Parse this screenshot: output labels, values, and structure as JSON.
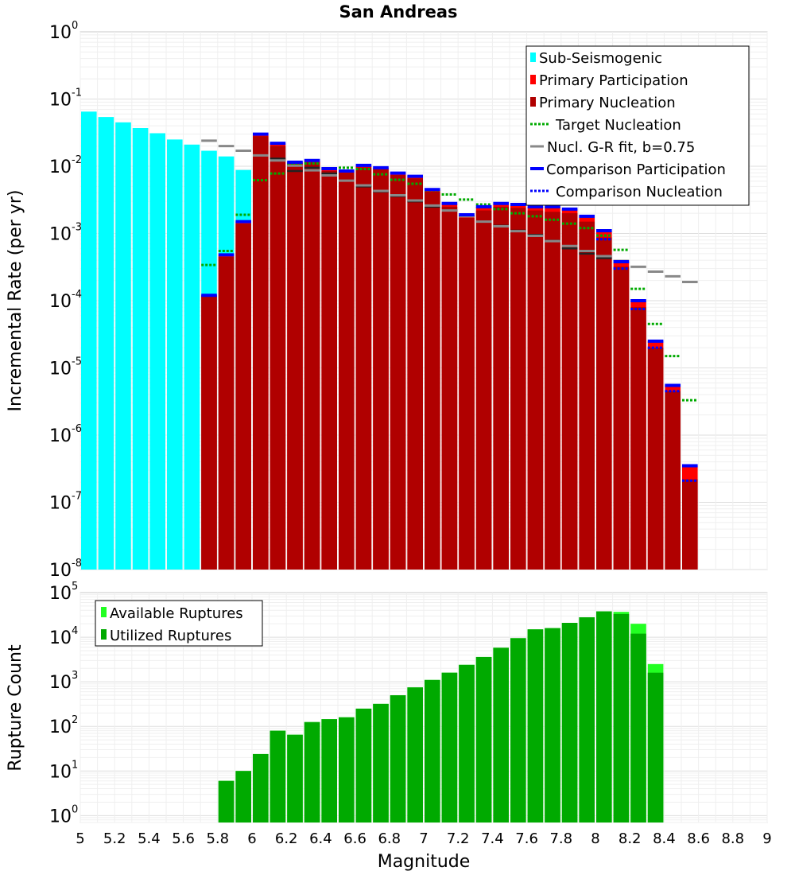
{
  "chart_data": [
    {
      "type": "bar",
      "title": "San Andreas",
      "ylabel": "Incremental Rate (per yr)",
      "xlabel": "",
      "yscale": "log",
      "ylim": [
        1e-08,
        1
      ],
      "xlim": [
        5,
        9
      ],
      "grid": true,
      "legend_placement": "top-right",
      "y_tick_labels": [
        {
          "base": "10",
          "exp": "0"
        },
        {
          "base": "10",
          "exp": "-1"
        },
        {
          "base": "10",
          "exp": "-2"
        },
        {
          "base": "10",
          "exp": "-3"
        },
        {
          "base": "10",
          "exp": "-4"
        },
        {
          "base": "10",
          "exp": "-5"
        },
        {
          "base": "10",
          "exp": "-6"
        },
        {
          "base": "10",
          "exp": "-7"
        },
        {
          "base": "10",
          "exp": "-8"
        }
      ],
      "legend": [
        "Sub-Seismogenic",
        "Primary Participation",
        "Primary Nucleation",
        "Target Nucleation",
        "Nucl. G-R fit, b=0.75",
        "Comparison Participation",
        "Comparison Nucleation"
      ],
      "colors": {
        "sub_seismogenic": "#00ffff",
        "primary_participation": "#ff0000",
        "primary_nucleation": "#b00000",
        "target_nucleation": "#00aa00",
        "gr_fit": "#888888",
        "comparison_participation": "#0000ff",
        "comparison_nucleation": "#0000ff",
        "nucleation_tick": "#222222"
      },
      "x": [
        5.05,
        5.15,
        5.25,
        5.35,
        5.45,
        5.55,
        5.65,
        5.75,
        5.85,
        5.95,
        6.05,
        6.15,
        6.25,
        6.35,
        6.45,
        6.55,
        6.65,
        6.75,
        6.85,
        6.95,
        7.05,
        7.15,
        7.25,
        7.35,
        7.45,
        7.55,
        7.65,
        7.75,
        7.85,
        7.95,
        8.05,
        8.15,
        8.25,
        8.35,
        8.45,
        8.55
      ],
      "series": [
        {
          "name": "Sub-Seismogenic",
          "kind": "bar",
          "values": [
            0.065,
            0.054,
            0.045,
            0.037,
            0.031,
            0.025,
            0.021,
            0.017,
            0.014,
            0.0088,
            null,
            null,
            null,
            null,
            null,
            null,
            null,
            null,
            null,
            null,
            null,
            null,
            null,
            null,
            null,
            null,
            null,
            null,
            null,
            null,
            null,
            null,
            null,
            null,
            null,
            null
          ]
        },
        {
          "name": "Primary Participation",
          "kind": "bar",
          "values": [
            null,
            null,
            null,
            null,
            null,
            null,
            null,
            0.00012,
            0.00048,
            0.0015,
            0.03,
            0.022,
            0.0115,
            0.0122,
            0.0092,
            0.0085,
            0.0103,
            0.0095,
            0.0079,
            0.0071,
            0.0045,
            0.0028,
            0.0019,
            0.0025,
            0.0028,
            0.0027,
            0.0025,
            0.0025,
            0.0023,
            0.0018,
            0.0011,
            0.00038,
            0.0001,
            2.5e-05,
            5.5e-06,
            3.5e-07
          ]
        },
        {
          "name": "Primary Nucleation",
          "kind": "bar",
          "values": [
            null,
            null,
            null,
            null,
            null,
            null,
            null,
            0.00012,
            0.00045,
            0.0014,
            0.028,
            0.02,
            0.011,
            0.0115,
            0.0085,
            0.008,
            0.0096,
            0.009,
            0.0074,
            0.0066,
            0.0042,
            0.0025,
            0.0017,
            0.0022,
            0.0025,
            0.0024,
            0.0022,
            0.0021,
            0.002,
            0.0015,
            0.00087,
            0.00032,
            8e-05,
            2e-05,
            4.5e-06,
            2.2e-07
          ]
        },
        {
          "name": "Target Nucleation",
          "kind": "dotted",
          "values": [
            null,
            null,
            null,
            null,
            null,
            null,
            null,
            0.00034,
            0.00055,
            0.0019,
            0.0062,
            0.0078,
            0.011,
            0.011,
            0.0093,
            0.0095,
            0.0091,
            0.0076,
            0.0063,
            0.0055,
            0.0044,
            0.0038,
            0.0032,
            0.0027,
            0.0023,
            0.002,
            0.0018,
            0.0016,
            0.0014,
            0.0012,
            0.00093,
            0.00057,
            0.00015,
            4.5e-05,
            1.5e-05,
            3.3e-06
          ]
        },
        {
          "name": "Nucl. G-R fit, b=0.75",
          "kind": "dash",
          "values": [
            null,
            null,
            null,
            null,
            null,
            null,
            null,
            0.024,
            0.02,
            0.017,
            0.0145,
            0.0122,
            0.0102,
            0.0087,
            0.0073,
            0.0061,
            0.0052,
            0.0043,
            0.0037,
            0.0031,
            0.0026,
            0.0022,
            0.0018,
            0.0015,
            0.00128,
            0.00108,
            0.00092,
            0.00077,
            0.00065,
            0.00055,
            0.00046,
            0.00039,
            0.00032,
            0.00027,
            0.00023,
            0.00019
          ]
        },
        {
          "name": "Comparison Participation",
          "kind": "dash",
          "values": [
            null,
            null,
            null,
            null,
            null,
            null,
            null,
            0.00012,
            0.00048,
            0.0015,
            0.03,
            0.022,
            0.0115,
            0.0122,
            0.0092,
            0.0085,
            0.0103,
            0.0095,
            0.0079,
            0.0071,
            0.0045,
            0.0028,
            0.0019,
            0.0025,
            0.0028,
            0.0027,
            0.0025,
            0.0025,
            0.0023,
            0.0018,
            0.0011,
            0.00038,
            0.0001,
            2.5e-05,
            5.5e-06,
            3.5e-07
          ]
        },
        {
          "name": "Comparison Nucleation",
          "kind": "dotted",
          "values": [
            null,
            null,
            null,
            null,
            null,
            null,
            null,
            null,
            null,
            null,
            null,
            null,
            null,
            null,
            null,
            null,
            null,
            null,
            null,
            null,
            null,
            null,
            null,
            null,
            null,
            null,
            null,
            null,
            null,
            null,
            0.00082,
            0.0003,
            7.5e-05,
            2e-05,
            4.5e-06,
            2.1e-07
          ]
        }
      ],
      "nucleation_ticks": [
        null,
        null,
        null,
        null,
        null,
        null,
        null,
        null,
        null,
        null,
        null,
        0.013,
        0.0085,
        0.0095,
        0.0078,
        0.0061,
        0.005,
        0.0042,
        0.0036,
        0.003,
        0.0025,
        0.0022,
        0.0018,
        0.0015,
        0.0013,
        0.0011,
        0.00095,
        0.00078,
        0.0006,
        0.0005,
        0.00043,
        null,
        null,
        null,
        null,
        null
      ]
    },
    {
      "type": "bar",
      "title": "",
      "ylabel": "Rupture Count",
      "xlabel": "Magnitude",
      "yscale": "log",
      "ylim": [
        0.7,
        100000
      ],
      "xlim": [
        5,
        9
      ],
      "grid": true,
      "legend_placement": "top-left",
      "y_tick_labels": [
        {
          "base": "10",
          "exp": "5"
        },
        {
          "base": "10",
          "exp": "4"
        },
        {
          "base": "10",
          "exp": "3"
        },
        {
          "base": "10",
          "exp": "2"
        },
        {
          "base": "10",
          "exp": "1"
        },
        {
          "base": "10",
          "exp": "0"
        }
      ],
      "x_tick_labels": [
        "5",
        "5.2",
        "5.4",
        "5.6",
        "5.8",
        "6",
        "6.2",
        "6.4",
        "6.6",
        "6.8",
        "7",
        "7.2",
        "7.4",
        "7.6",
        "7.8",
        "8",
        "8.2",
        "8.4",
        "8.6",
        "8.8",
        "9"
      ],
      "legend": [
        "Available Ruptures",
        "Utilized Ruptures"
      ],
      "colors": {
        "available": "#22ff22",
        "utilized": "#00aa00"
      },
      "x": [
        5.85,
        5.95,
        6.05,
        6.15,
        6.25,
        6.35,
        6.45,
        6.55,
        6.65,
        6.75,
        6.85,
        6.95,
        7.05,
        7.15,
        7.25,
        7.35,
        7.45,
        7.55,
        7.65,
        7.75,
        7.85,
        7.95,
        8.05,
        8.15,
        8.25,
        8.35
      ],
      "series": [
        {
          "name": "Available Ruptures",
          "values": [
            6,
            10,
            24,
            80,
            65,
            125,
            145,
            160,
            250,
            320,
            500,
            750,
            1100,
            1600,
            2400,
            3600,
            5800,
            9500,
            15000,
            16000,
            21000,
            28000,
            38000,
            37000,
            20000,
            2500
          ]
        },
        {
          "name": "Utilized Ruptures",
          "values": [
            6,
            10,
            24,
            80,
            65,
            125,
            145,
            160,
            250,
            320,
            500,
            750,
            1100,
            1600,
            2400,
            3600,
            5800,
            9500,
            15000,
            16000,
            21000,
            28000,
            38000,
            33000,
            12000,
            1600
          ]
        }
      ]
    }
  ]
}
